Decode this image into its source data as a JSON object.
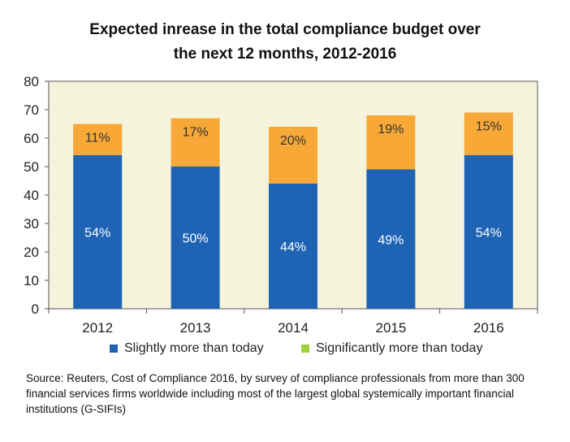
{
  "title_line1": "Expected inrease in the total compliance budget over",
  "title_line2": "the next 12 months, 2012-2016",
  "source": "Source: Reuters, Cost of Compliance 2016, by survey of compliance professionals from more than 300 financial services firms worldwide including most of the largest global systemically important financial institutions (G-SIFIs)",
  "colors": {
    "plot_background": "#f5f3dc",
    "slightly": "#1f63b4",
    "significantly_bar": "#f7a836",
    "significantly_legend": "#9ed13a",
    "axis": "#555555"
  },
  "chart_data": {
    "type": "bar",
    "stacked": true,
    "categories": [
      "2012",
      "2013",
      "2014",
      "2015",
      "2016"
    ],
    "series": [
      {
        "name": "Slightly more than today",
        "values": [
          54,
          50,
          44,
          49,
          54
        ],
        "labels": [
          "54%",
          "50%",
          "44%",
          "49%",
          "54%"
        ]
      },
      {
        "name": "Significantly more than today",
        "values": [
          11,
          17,
          20,
          19,
          15
        ],
        "labels": [
          "11%",
          "17%",
          "20%",
          "19%",
          "15%"
        ]
      }
    ],
    "ylim": [
      0,
      80
    ],
    "yticks": [
      "0",
      "10",
      "20",
      "30",
      "40",
      "50",
      "60",
      "70",
      "80"
    ],
    "grid": false,
    "legend_position": "bottom"
  }
}
